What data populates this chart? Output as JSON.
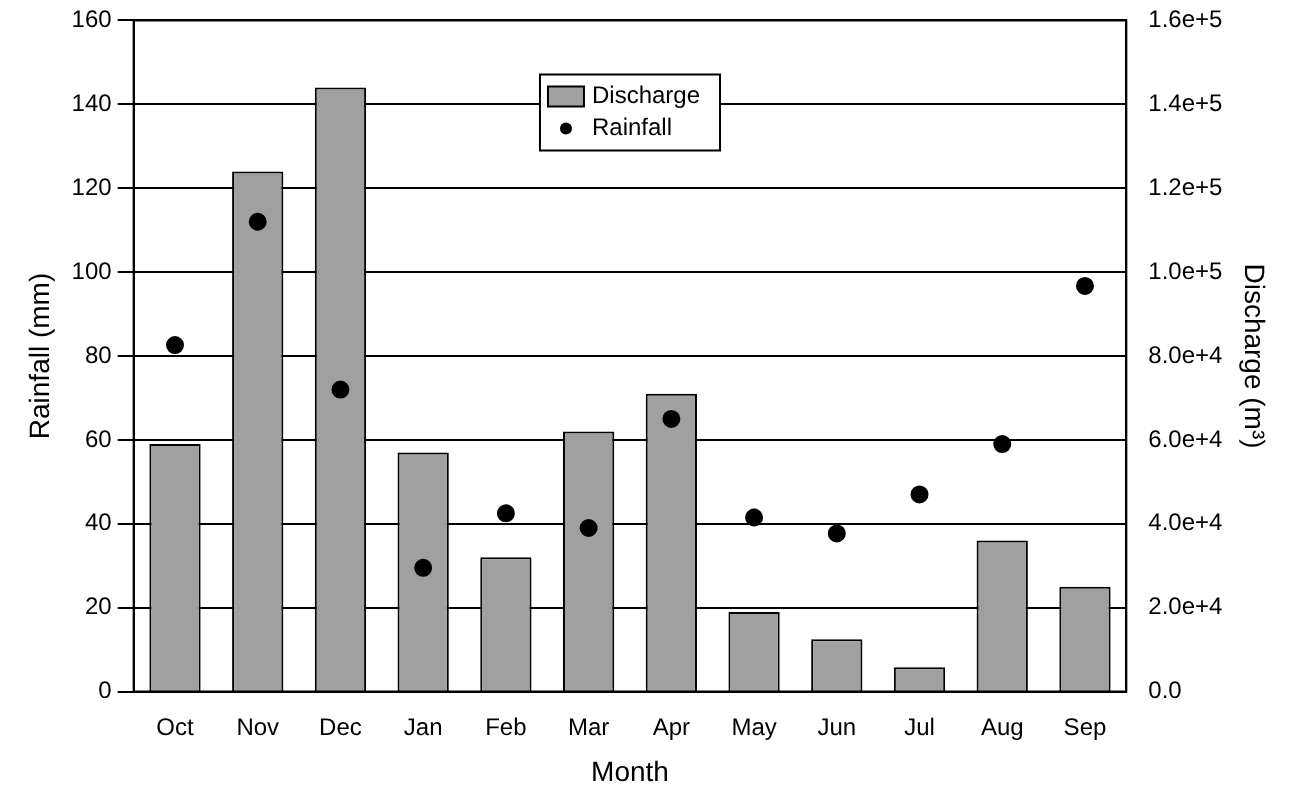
{
  "chart_data": {
    "type": "bar",
    "xlabel": "Month",
    "ylabel": "Rainfall (mm)",
    "y2label": "Discharge (m³)",
    "categories": [
      "Oct",
      "Nov",
      "Dec",
      "Jan",
      "Feb",
      "Mar",
      "Apr",
      "May",
      "Jun",
      "Jul",
      "Aug",
      "Sep"
    ],
    "series": [
      {
        "name": "Discharge",
        "axis": "y2",
        "color": "#a0a0a0",
        "values": [
          59000,
          124000,
          144000,
          57000,
          32000,
          62000,
          71000,
          19000,
          12500,
          5800,
          36000,
          25000
        ]
      },
      {
        "name": "Rainfall",
        "type": "scatter",
        "axis": "y",
        "color": "#000000",
        "values": [
          82.6,
          112,
          72,
          29.5,
          42.5,
          39,
          65,
          41.5,
          37.7,
          47,
          59,
          96.7
        ]
      }
    ],
    "ylim": [
      0,
      160
    ],
    "yticks": [
      0,
      20,
      40,
      60,
      80,
      100,
      120,
      140,
      160
    ],
    "y2lim": [
      0,
      160000
    ],
    "y2ticks": [
      {
        "value": 0,
        "label": "0.0"
      },
      {
        "value": 20000,
        "label": "2.0e+4"
      },
      {
        "value": 40000,
        "label": "4.0e+4"
      },
      {
        "value": 60000,
        "label": "6.0e+4"
      },
      {
        "value": 80000,
        "label": "8.0e+4"
      },
      {
        "value": 100000,
        "label": "1.0e+5"
      },
      {
        "value": 120000,
        "label": "1.2e+5"
      },
      {
        "value": 140000,
        "label": "1.4e+5"
      },
      {
        "value": 160000,
        "label": "1.6e+5"
      }
    ],
    "grid": "y",
    "legend": "top",
    "marker": "circle"
  }
}
